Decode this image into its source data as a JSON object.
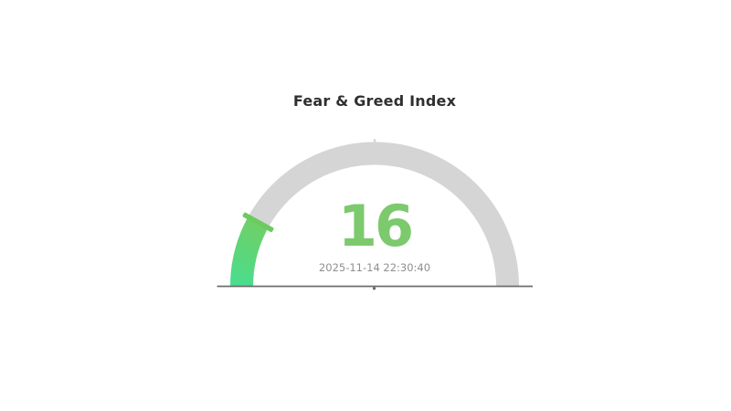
{
  "chart_data": {
    "type": "gauge",
    "title": "Fear & Greed Index",
    "value": 16,
    "min": 0,
    "max": 100,
    "timestamp_label": "2025-11-14 22:30:40",
    "layout": {
      "arc_span_degrees": 180,
      "legend": false,
      "grid": false,
      "axis_tick_labels": false
    },
    "colors": {
      "track": "#d5d5d5",
      "progress_start": "#47de8f",
      "progress_end": "#74ce62",
      "marker": "#6ccb60",
      "value_text": "#7dc96d",
      "timestamp_text": "#8f8f8f",
      "title_text": "#2f2f2f",
      "baseline": "#6e6e6e",
      "center_anchor": "#6a6a6a"
    }
  }
}
